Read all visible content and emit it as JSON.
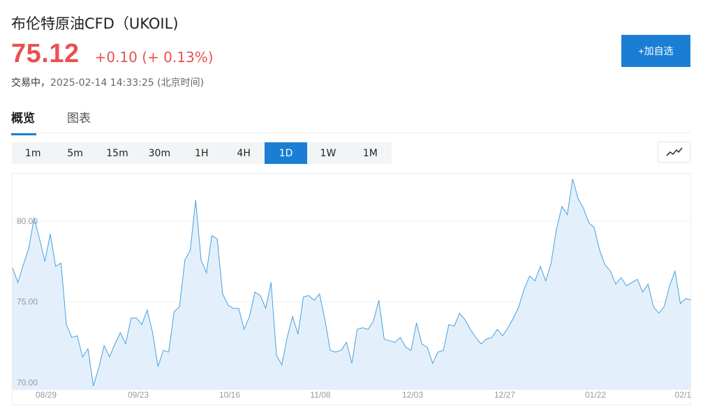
{
  "header": {
    "title": "布伦特原油CFD（UKOIL)",
    "price": "75.12",
    "change": "+0.10 (+ 0.13%)",
    "status": "交易中，",
    "timestamp": "2025-02-14 14:33:25 (北京时间)",
    "watch_button": "+加自选"
  },
  "tabs": [
    {
      "label": "概览",
      "active": true
    },
    {
      "label": "图表",
      "active": false
    }
  ],
  "periods": [
    {
      "label": "1m",
      "active": false
    },
    {
      "label": "5m",
      "active": false
    },
    {
      "label": "15m",
      "active": false
    },
    {
      "label": "30m",
      "active": false
    },
    {
      "label": "1H",
      "active": false
    },
    {
      "label": "4H",
      "active": false
    },
    {
      "label": "1D",
      "active": true
    },
    {
      "label": "1W",
      "active": false
    },
    {
      "label": "1M",
      "active": false
    }
  ],
  "icons": {
    "chart_type": "line-chart-icon"
  },
  "colors": {
    "accent": "#1a7fd4",
    "up": "#eb5050",
    "line": "#4aa0dc",
    "fill": "#e3f0fb"
  },
  "chart_data": {
    "type": "area",
    "title": "",
    "xlabel": "",
    "ylabel": "",
    "ylim": [
      69.55,
      82.93
    ],
    "yticks": [
      "80.00",
      "75.00",
      "70.00"
    ],
    "xticks": [
      "08/29",
      "09/23",
      "10/16",
      "11/08",
      "12/03",
      "12/27",
      "01/22",
      "02/1"
    ],
    "grid": true,
    "values": [
      77.1,
      76.2,
      77.3,
      78.3,
      80.2,
      78.9,
      77.5,
      79.2,
      77.2,
      77.4,
      73.6,
      72.8,
      72.9,
      71.6,
      72.1,
      69.8,
      70.9,
      72.3,
      71.6,
      72.4,
      73.1,
      72.4,
      74.0,
      74.0,
      73.6,
      74.5,
      73.1,
      71.0,
      72.0,
      71.9,
      74.4,
      74.7,
      77.6,
      78.2,
      81.3,
      77.6,
      76.8,
      79.1,
      78.9,
      75.5,
      74.8,
      74.6,
      74.6,
      73.3,
      74.1,
      75.6,
      75.4,
      74.6,
      76.2,
      71.7,
      71.1,
      72.8,
      74.1,
      73.0,
      75.3,
      75.4,
      75.1,
      75.5,
      73.9,
      72.0,
      71.9,
      72.0,
      72.5,
      71.2,
      73.3,
      73.4,
      73.3,
      73.8,
      75.1,
      72.7,
      72.6,
      72.5,
      72.8,
      72.2,
      72.0,
      73.7,
      72.4,
      72.2,
      71.2,
      71.9,
      72.0,
      73.6,
      73.5,
      74.3,
      73.9,
      73.3,
      72.8,
      72.4,
      72.7,
      72.8,
      73.3,
      72.9,
      73.4,
      74.0,
      74.7,
      75.8,
      76.6,
      76.3,
      77.2,
      76.3,
      77.4,
      79.5,
      80.9,
      80.4,
      82.6,
      81.4,
      80.8,
      79.9,
      79.6,
      78.2,
      77.3,
      76.9,
      76.1,
      76.5,
      76.0,
      76.2,
      76.4,
      75.6,
      76.1,
      74.7,
      74.3,
      74.7,
      76.0,
      76.9,
      74.9,
      75.2,
      75.12
    ]
  }
}
